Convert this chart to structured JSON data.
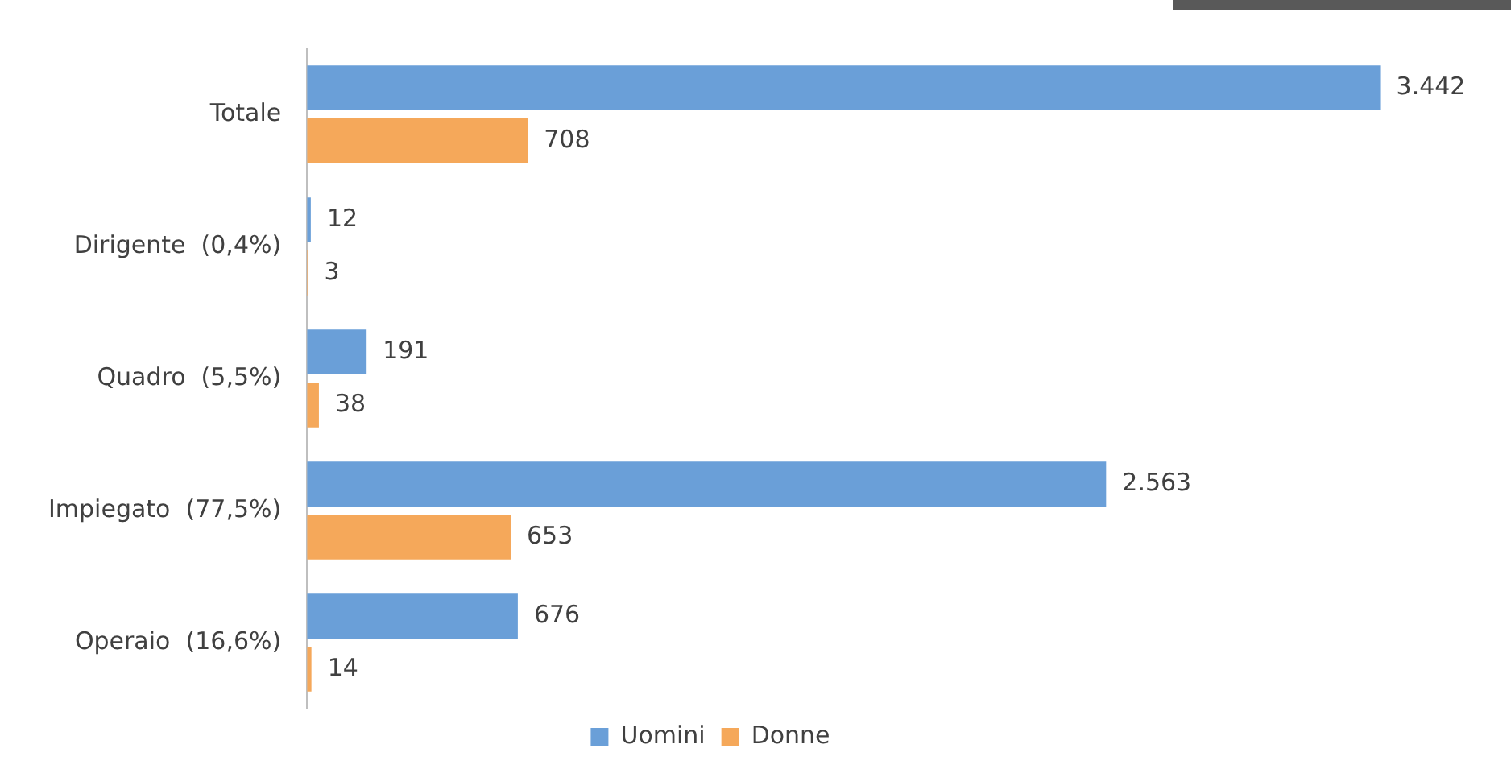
{
  "chart_data": {
    "type": "bar",
    "orientation": "horizontal",
    "categories": [
      "Totale",
      "Dirigente  (0,4%)",
      "Quadro  (5,5%)",
      "Impiegato  (77,5%)",
      "Operaio  (16,6%)"
    ],
    "series": [
      {
        "name": "Uomini",
        "color": "#6a9fd8",
        "values": [
          3442,
          12,
          191,
          2563,
          676
        ],
        "value_labels": [
          "3.442",
          "12",
          "191",
          "2.563",
          "676"
        ]
      },
      {
        "name": "Donne",
        "color": "#f5a85a",
        "values": [
          708,
          3,
          38,
          653,
          14
        ],
        "value_labels": [
          "708",
          "3",
          "38",
          "653",
          "14"
        ]
      }
    ],
    "legend": "bottom"
  }
}
